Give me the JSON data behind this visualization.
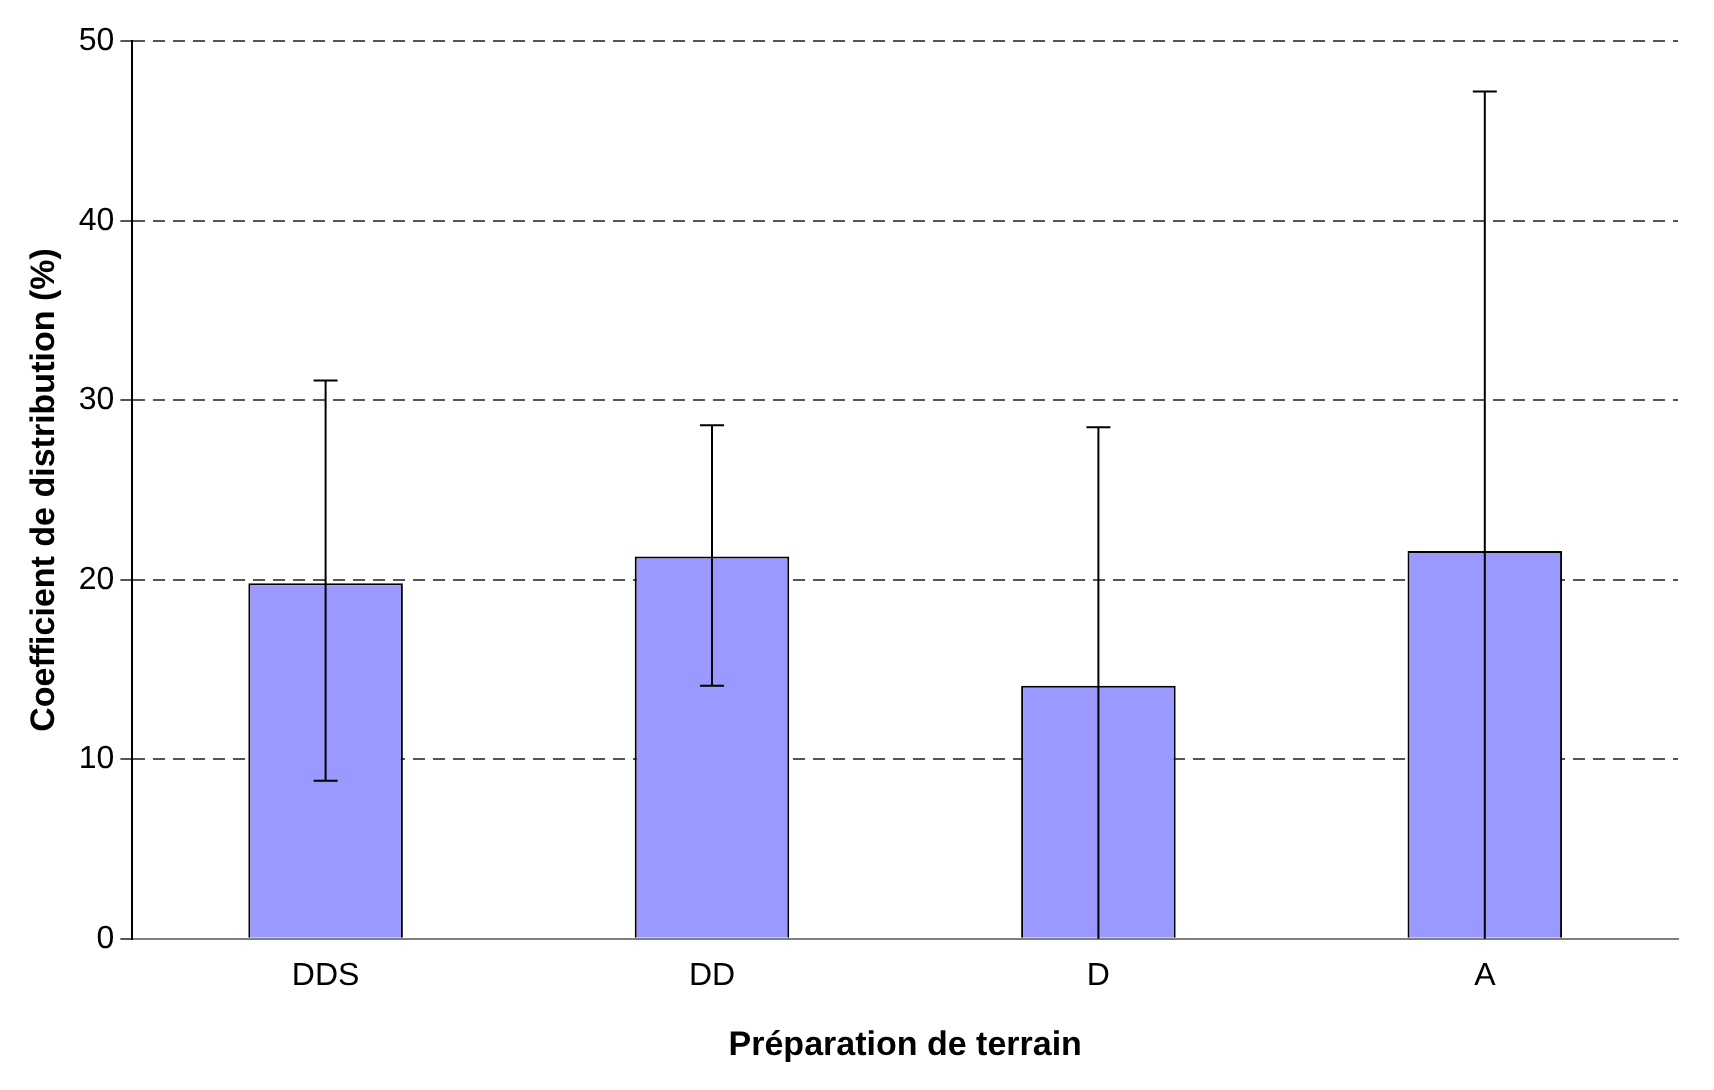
{
  "chart_data": {
    "type": "bar",
    "xlabel": "Préparation de terrain",
    "ylabel": "Coefficient de distribution (%)",
    "categories": [
      "DDS",
      "DD",
      "D",
      "A"
    ],
    "values": [
      19.8,
      21.3,
      14.1,
      21.6
    ],
    "errors": [
      [
        8.8,
        31.1
      ],
      [
        14.1,
        28.6
      ],
      [
        0,
        28.5
      ],
      [
        0,
        47.2
      ]
    ],
    "color": "#9999ff",
    "ylim": [
      0,
      50
    ],
    "yticks": [
      0,
      10,
      20,
      30,
      40,
      50
    ],
    "grid": "y"
  }
}
